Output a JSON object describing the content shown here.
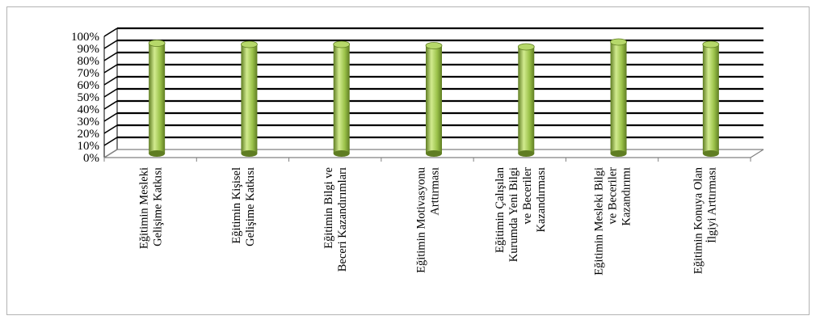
{
  "chart_data": {
    "type": "bar",
    "style": "3d-cylinder",
    "categories": [
      [
        "Eğitimin Mesleki",
        "Gelişime Katkısı"
      ],
      [
        "Eğitimin Kişisel",
        "Gelişime Katkısı"
      ],
      [
        "Eğitimin Bilgi ve",
        "Beceri Kazandırımları"
      ],
      [
        "Eğitimin Motivasyonu",
        "Arttırması"
      ],
      [
        "Eğitimin Çalışılan",
        "Kurumda Yeni Bilgi",
        "ve Beceriler",
        "Kazandırması"
      ],
      [
        "Eğitimin Mesleki Bilgi",
        "ve Beceriler",
        "Kazandırımı"
      ],
      [
        "Eğitimin Konuya Olan",
        "İlgiyi Arttırması"
      ]
    ],
    "values": [
      0.91,
      0.9,
      0.9,
      0.89,
      0.88,
      0.92,
      0.9
    ],
    "y_ticks": [
      "0%",
      "10%",
      "20%",
      "30%",
      "40%",
      "50%",
      "60%",
      "70%",
      "80%",
      "90%",
      "100%"
    ],
    "ylim": [
      0,
      1
    ],
    "grid": true,
    "legend": "none",
    "colors": {
      "bar_dark": "#5f7d22",
      "bar_mid": "#9bc24a",
      "bar_light": "#d2eb8f",
      "bar_top": "#b6d86a",
      "grid": "#000000",
      "frame": "#b3b3b3"
    }
  }
}
